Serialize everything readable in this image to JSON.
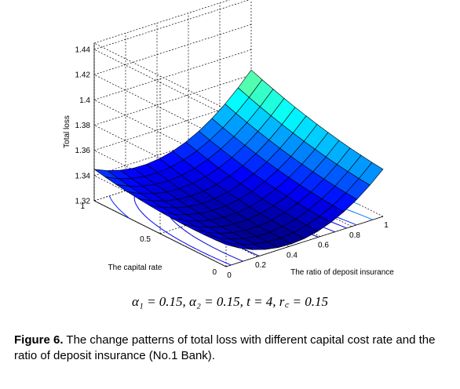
{
  "chart_data": {
    "type": "surface",
    "zlabel": "Total loss",
    "xlabel": "The ratio of deposit insurance",
    "ylabel": "The capital rate",
    "x_ticks": [
      "0",
      "0.2",
      "0.4",
      "0.6",
      "0.8",
      "1"
    ],
    "y_ticks": [
      "0",
      "0.5",
      "1"
    ],
    "z_ticks": [
      "1.32",
      "1.34",
      "1.36",
      "1.38",
      "1.4",
      "1.42",
      "1.44"
    ],
    "xlim": [
      0,
      1
    ],
    "ylim": [
      0,
      1
    ],
    "zlim": [
      1.32,
      1.445
    ],
    "grid": true,
    "colormap": "jet",
    "corner_values": {
      "x0_y0": 1.325,
      "x1_y0": 1.405,
      "x0_y1": 1.345,
      "x1_y1": 1.445
    },
    "minimum": {
      "x": 0.4,
      "y": 0.25,
      "z": 1.321
    },
    "contour_projection": true
  },
  "formula": "α₁ = 0.15, α₂ = 0.15, t = 4, r꜀ = 0.15",
  "caption": {
    "label": "Figure 6.",
    "text": "The change patterns of total loss with different capital cost rate and the ratio of deposit insurance (No.1 Bank)."
  }
}
